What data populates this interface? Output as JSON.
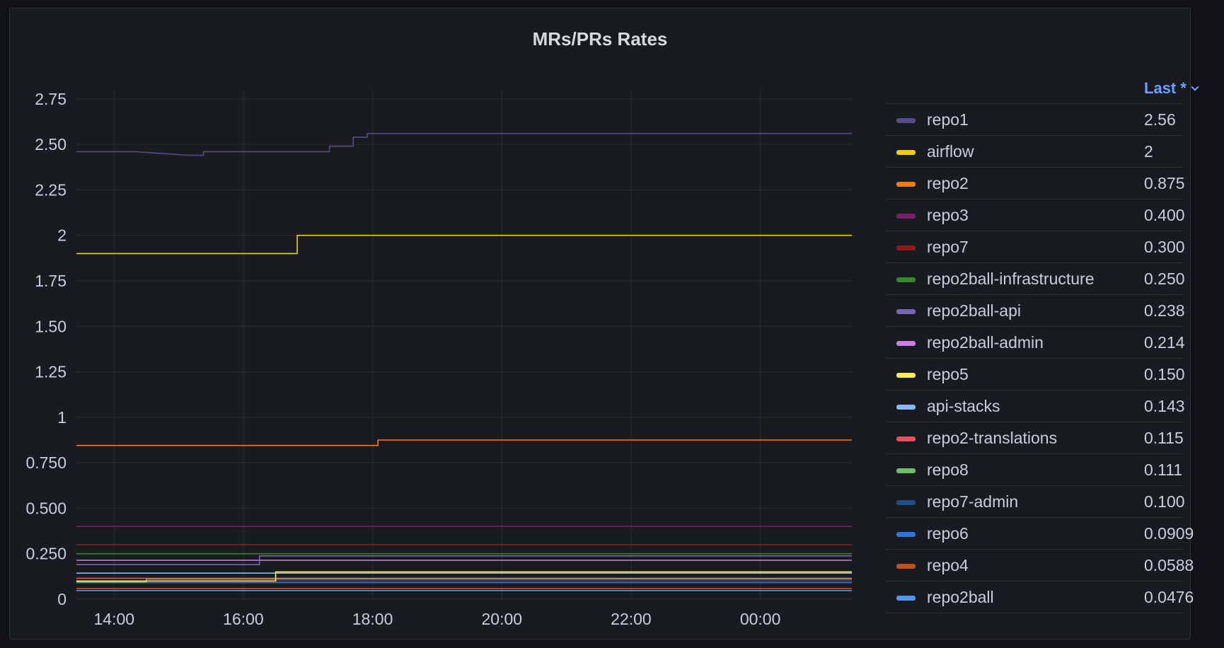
{
  "panel": {
    "title": "MRs/PRs Rates",
    "legend_sort_label": "Last *"
  },
  "chart_data": {
    "type": "line",
    "title": "MRs/PRs Rates",
    "xlabel": "",
    "ylabel": "",
    "x_tick_labels": [
      "14:00",
      "16:00",
      "18:00",
      "20:00",
      "22:00",
      "00:00"
    ],
    "y_tick_labels": [
      "0",
      "0.250",
      "0.500",
      "0.750",
      "1",
      "1.25",
      "1.50",
      "1.75",
      "2",
      "2.25",
      "2.50",
      "2.75"
    ],
    "y_ticks": [
      0,
      0.25,
      0.5,
      0.75,
      1,
      1.25,
      1.5,
      1.75,
      2,
      2.25,
      2.5,
      2.75
    ],
    "ylim": [
      0,
      2.8
    ],
    "x_range": [
      "13:25",
      "01:25"
    ],
    "grid": true,
    "legend_position": "right",
    "series": [
      {
        "name": "repo1",
        "color": "#5a4a8a",
        "last": "2.56",
        "points": [
          [
            "13:25",
            2.46
          ],
          [
            "14:20",
            2.46
          ],
          [
            "15:10",
            2.44
          ],
          [
            "15:23",
            2.44
          ],
          [
            "15:23",
            2.46
          ],
          [
            "17:20",
            2.46
          ],
          [
            "17:20",
            2.49
          ],
          [
            "17:42",
            2.49
          ],
          [
            "17:42",
            2.54
          ],
          [
            "17:55",
            2.54
          ],
          [
            "17:55",
            2.56
          ],
          [
            "01:25",
            2.56
          ]
        ]
      },
      {
        "name": "airflow",
        "color": "#f2cc0c",
        "last": "2",
        "points": [
          [
            "13:25",
            1.9
          ],
          [
            "16:50",
            1.9
          ],
          [
            "16:50",
            2.0
          ],
          [
            "01:25",
            2.0
          ]
        ]
      },
      {
        "name": "repo2",
        "color": "#ff780a",
        "last": "0.875",
        "points": [
          [
            "13:25",
            0.845
          ],
          [
            "18:05",
            0.845
          ],
          [
            "18:05",
            0.875
          ],
          [
            "01:25",
            0.875
          ]
        ]
      },
      {
        "name": "repo3",
        "color": "#7a1f66",
        "last": "0.400",
        "points": [
          [
            "13:25",
            0.4
          ],
          [
            "01:25",
            0.4
          ]
        ]
      },
      {
        "name": "repo7",
        "color": "#8e1a1a",
        "last": "0.300",
        "points": [
          [
            "13:25",
            0.3
          ],
          [
            "01:25",
            0.3
          ]
        ]
      },
      {
        "name": "repo2ball-infrastructure",
        "color": "#37872d",
        "last": "0.250",
        "points": [
          [
            "13:25",
            0.25
          ],
          [
            "01:25",
            0.25
          ]
        ]
      },
      {
        "name": "repo2ball-api",
        "color": "#7e63b3",
        "last": "0.238",
        "points": [
          [
            "13:25",
            0.19
          ],
          [
            "16:15",
            0.19
          ],
          [
            "16:15",
            0.238
          ],
          [
            "01:25",
            0.238
          ]
        ]
      },
      {
        "name": "repo2ball-admin",
        "color": "#ca7fe2",
        "last": "0.214",
        "points": [
          [
            "13:25",
            0.214
          ],
          [
            "01:25",
            0.214
          ]
        ]
      },
      {
        "name": "repo5",
        "color": "#ffee52",
        "last": "0.150",
        "points": [
          [
            "13:25",
            0.1
          ],
          [
            "16:30",
            0.1
          ],
          [
            "16:30",
            0.15
          ],
          [
            "01:25",
            0.15
          ]
        ]
      },
      {
        "name": "api-stacks",
        "color": "#8ab8ff",
        "last": "0.143",
        "points": [
          [
            "13:25",
            0.143
          ],
          [
            "01:25",
            0.143
          ]
        ]
      },
      {
        "name": "repo2-translations",
        "color": "#f2495c",
        "last": "0.115",
        "points": [
          [
            "13:25",
            0.115
          ],
          [
            "01:25",
            0.115
          ]
        ]
      },
      {
        "name": "repo8",
        "color": "#73bf69",
        "last": "0.111",
        "points": [
          [
            "13:25",
            0.095
          ],
          [
            "14:30",
            0.095
          ],
          [
            "14:30",
            0.111
          ],
          [
            "01:25",
            0.111
          ]
        ]
      },
      {
        "name": "repo7-admin",
        "color": "#1f4e8a",
        "last": "0.100",
        "points": [
          [
            "13:25",
            0.1
          ],
          [
            "01:25",
            0.1
          ]
        ]
      },
      {
        "name": "repo6",
        "color": "#3274d9",
        "last": "0.0909",
        "points": [
          [
            "13:25",
            0.0909
          ],
          [
            "01:25",
            0.0909
          ]
        ]
      },
      {
        "name": "repo4",
        "color": "#c4501f",
        "last": "0.0588",
        "points": [
          [
            "13:25",
            0.0588
          ],
          [
            "01:25",
            0.0588
          ]
        ]
      },
      {
        "name": "repo2ball",
        "color": "#5794f2",
        "last": "0.0476",
        "points": [
          [
            "13:25",
            0.0476
          ],
          [
            "01:25",
            0.0476
          ]
        ]
      }
    ]
  }
}
